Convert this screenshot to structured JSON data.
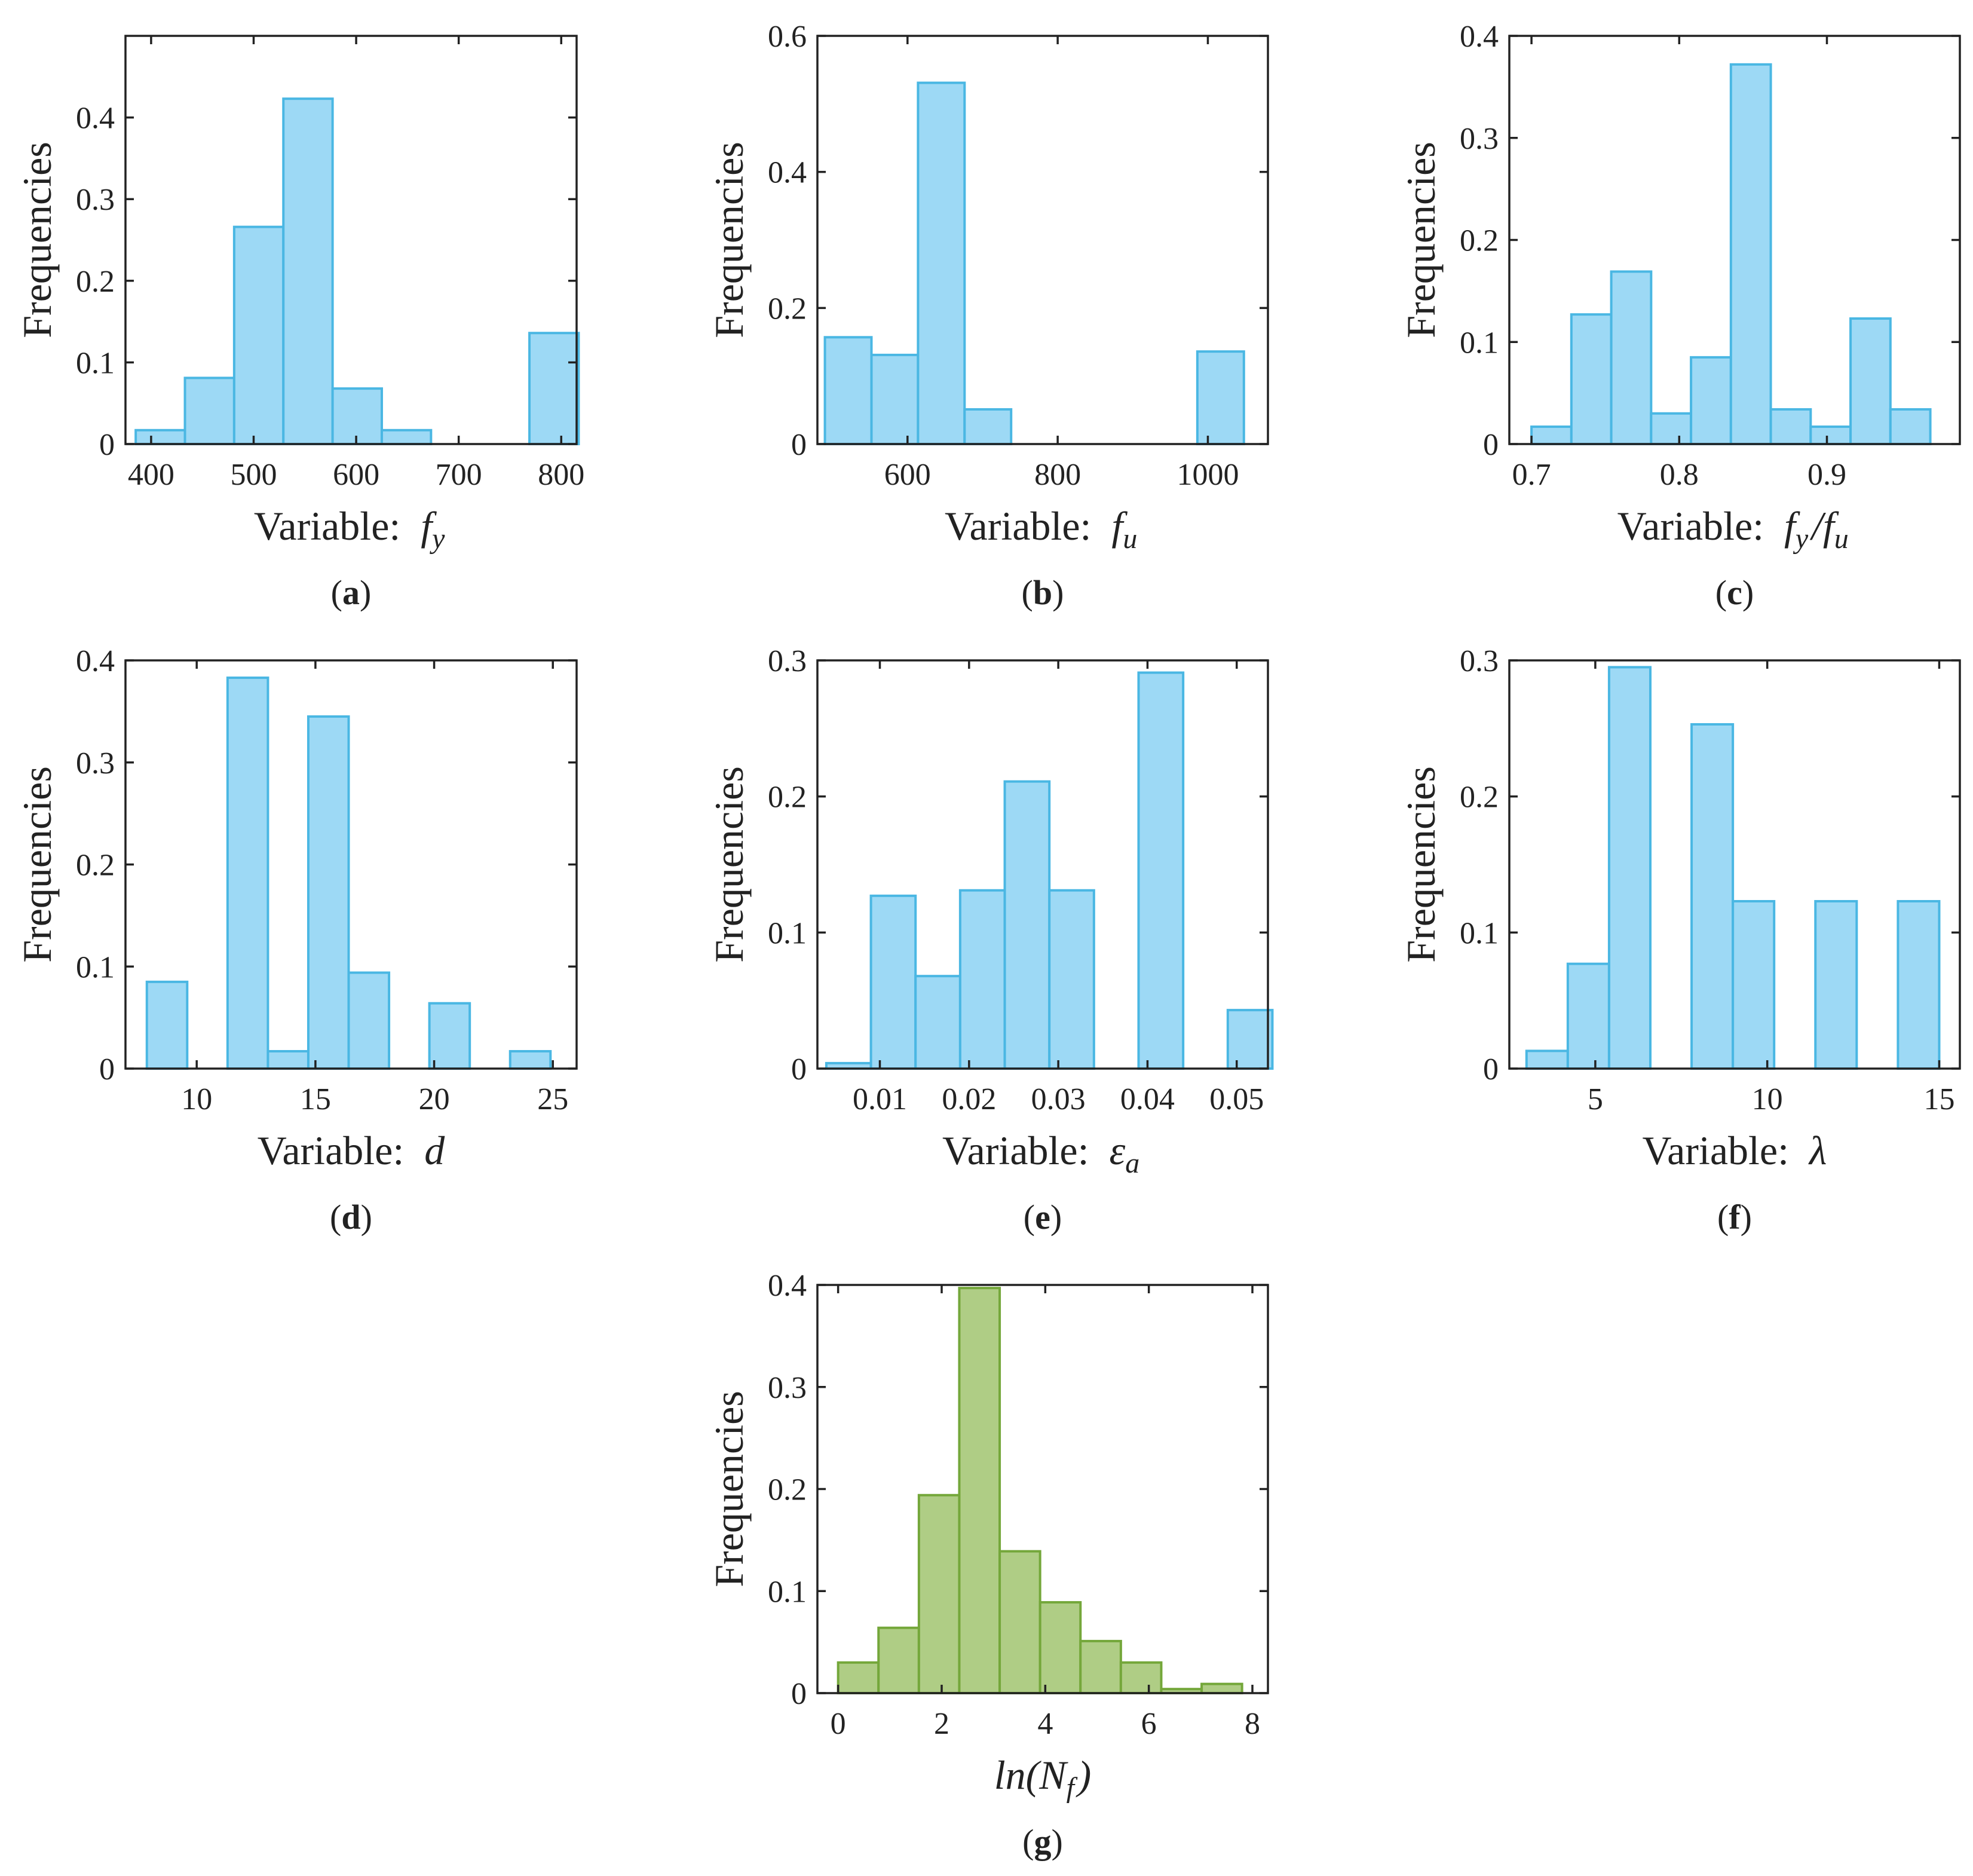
{
  "colors": {
    "blue_fill": "#9dd9f5",
    "blue_edge": "#4ab7e3",
    "green_fill": "#afcd85",
    "green_edge": "#74a73a"
  },
  "chart_data": [
    {
      "id": "a",
      "type": "bar",
      "panel_label": "a",
      "xlabel": "Variable:",
      "xlabel_symbol": "f_y",
      "ylabel": "Frequencies",
      "xlim": [
        375,
        815
      ],
      "ylim": [
        0,
        0.5
      ],
      "xticks": [
        400,
        500,
        600,
        700,
        800
      ],
      "yticks": [
        0,
        0.1,
        0.2,
        0.3,
        0.4
      ],
      "bin_edges": [
        385,
        433,
        481,
        529,
        577,
        625,
        673,
        721,
        769,
        817
      ],
      "values": [
        0.017,
        0.081,
        0.266,
        0.423,
        0.068,
        0.017,
        0,
        0,
        0.136
      ],
      "color": "blue"
    },
    {
      "id": "b",
      "type": "bar",
      "panel_label": "b",
      "xlabel": "Variable:",
      "xlabel_symbol": "f_u",
      "ylabel": "Frequencies",
      "xlim": [
        480,
        1080
      ],
      "ylim": [
        0,
        0.6
      ],
      "xticks": [
        600,
        800,
        1000
      ],
      "yticks": [
        0,
        0.2,
        0.4,
        0.6
      ],
      "bin_edges": [
        490,
        552,
        614,
        676,
        738,
        800,
        862,
        924,
        986,
        1048
      ],
      "values": [
        0.157,
        0.131,
        0.531,
        0.051,
        0,
        0,
        0,
        0,
        0.136
      ],
      "color": "blue"
    },
    {
      "id": "c",
      "type": "bar",
      "panel_label": "c",
      "xlabel": "Variable:",
      "xlabel_symbol": "f_y/f_u",
      "ylabel": "Frequencies",
      "xlim": [
        0.685,
        0.99
      ],
      "ylim": [
        0,
        0.4
      ],
      "xticks": [
        0.7,
        0.8,
        0.9
      ],
      "yticks": [
        0,
        0.1,
        0.2,
        0.3,
        0.4
      ],
      "bin_edges": [
        0.7,
        0.727,
        0.754,
        0.781,
        0.808,
        0.835,
        0.862,
        0.889,
        0.916,
        0.943,
        0.97
      ],
      "values": [
        0.017,
        0.127,
        0.169,
        0.03,
        0.085,
        0.372,
        0.034,
        0.017,
        0.123,
        0.034
      ],
      "color": "blue"
    },
    {
      "id": "d",
      "type": "bar",
      "panel_label": "d",
      "xlabel": "Variable:",
      "xlabel_symbol": "d",
      "ylabel": "Frequencies",
      "xlim": [
        7,
        26
      ],
      "ylim": [
        0,
        0.4
      ],
      "xticks": [
        10,
        15,
        20,
        25
      ],
      "yticks": [
        0,
        0.1,
        0.2,
        0.3,
        0.4
      ],
      "bin_edges": [
        7.9,
        9.6,
        11.3,
        13.0,
        14.7,
        16.4,
        18.1,
        19.8,
        21.5,
        23.2,
        24.9
      ],
      "values": [
        0.085,
        0,
        0.383,
        0.017,
        0.345,
        0.094,
        0,
        0.064,
        0,
        0.017
      ],
      "color": "blue"
    },
    {
      "id": "e",
      "type": "bar",
      "panel_label": "e",
      "xlabel": "Variable:",
      "xlabel_symbol": "ε_a",
      "ylabel": "Frequencies",
      "xlim": [
        0.003,
        0.0535
      ],
      "ylim": [
        0,
        0.3
      ],
      "xticks": [
        0.01,
        0.02,
        0.03,
        0.04,
        0.05
      ],
      "yticks": [
        0,
        0.1,
        0.2,
        0.3
      ],
      "bin_edges": [
        0.004,
        0.009,
        0.014,
        0.019,
        0.024,
        0.029,
        0.034,
        0.039,
        0.044,
        0.049,
        0.054
      ],
      "values": [
        0.004,
        0.127,
        0.068,
        0.131,
        0.211,
        0.131,
        0,
        0.291,
        0,
        0.043
      ],
      "color": "blue"
    },
    {
      "id": "f",
      "type": "bar",
      "panel_label": "f",
      "xlabel": "Variable:",
      "xlabel_symbol": "λ",
      "ylabel": "Frequencies",
      "xlim": [
        2.5,
        15.6
      ],
      "ylim": [
        0,
        0.3
      ],
      "xticks": [
        5,
        10,
        15
      ],
      "yticks": [
        0,
        0.1,
        0.2,
        0.3
      ],
      "bin_edges": [
        3.0,
        4.2,
        5.4,
        6.6,
        7.8,
        9.0,
        10.2,
        11.4,
        12.6,
        13.8,
        15.0
      ],
      "values": [
        0.013,
        0.077,
        0.295,
        0,
        0.253,
        0.123,
        0,
        0.123,
        0,
        0.123
      ],
      "color": "blue"
    },
    {
      "id": "g",
      "type": "bar",
      "panel_label": "g",
      "xlabel": "",
      "xlabel_symbol": "ln(N_f)",
      "ylabel": "Frequencies",
      "xlim": [
        -0.4,
        8.3
      ],
      "ylim": [
        0,
        0.4
      ],
      "xticks": [
        0,
        2,
        4,
        6,
        8
      ],
      "yticks": [
        0,
        0.1,
        0.2,
        0.3,
        0.4
      ],
      "bin_edges": [
        0,
        0.78,
        1.56,
        2.34,
        3.12,
        3.9,
        4.68,
        5.46,
        6.24,
        7.02,
        7.8
      ],
      "values": [
        0.03,
        0.064,
        0.194,
        0.397,
        0.139,
        0.089,
        0.051,
        0.03,
        0.004,
        0.009
      ],
      "color": "green"
    }
  ]
}
